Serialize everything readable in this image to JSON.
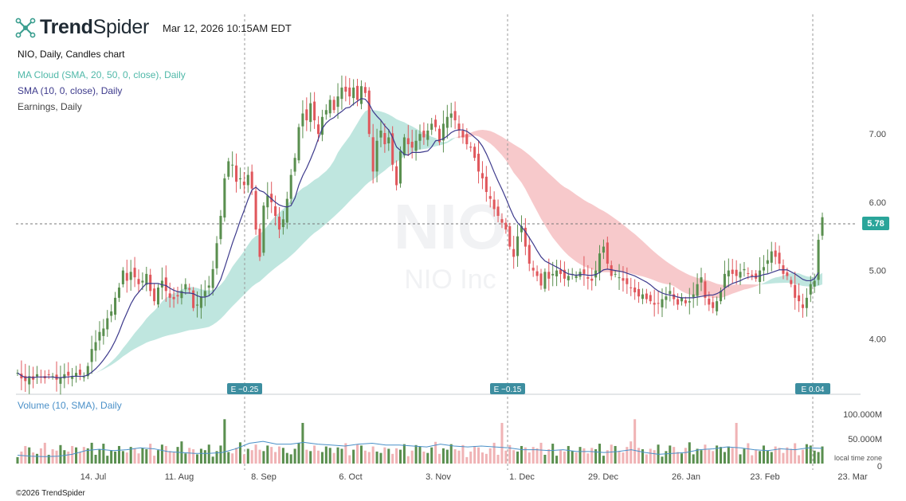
{
  "header": {
    "brand_bold": "Trend",
    "brand_light": "Spider",
    "timestamp": "Mar 12, 2026 10:15AM EDT"
  },
  "legend": {
    "chart_title": "NIO, Daily, Candles chart",
    "ma_cloud": "MA Cloud (SMA, 20, 50, 0, close), Daily",
    "sma": "SMA (10, 0, close), Daily",
    "earnings": "Earnings, Daily",
    "volume": "Volume (10, SMA), Daily"
  },
  "watermark": {
    "symbol": "NIO",
    "name": "NIO Inc"
  },
  "footer": "©2026 TrendSpider",
  "volume_axis_note": "local time zone",
  "colors": {
    "up": "#5a8f4f",
    "down": "#e0575c",
    "cloud_bull": "#bfe6df",
    "cloud_bear": "#f7c9cb",
    "sma": "#3d3a8c",
    "badge": "#3d8ea0",
    "price_tag": "#2aa59a",
    "vol_up": "#5a8f4f",
    "vol_down": "#f0b3b5"
  },
  "chart_data": {
    "type": "candlestick",
    "symbol": "NIO",
    "interval": "Daily",
    "ylim": [
      3.3,
      7.85
    ],
    "y_ticks": [
      {
        "value": 7.0,
        "label": "7.00"
      },
      {
        "value": 6.0,
        "label": "6.00"
      },
      {
        "value": 5.0,
        "label": "5.00"
      },
      {
        "value": 4.0,
        "label": "4.00"
      }
    ],
    "x_ticks": [
      "14. Jul",
      "11. Aug",
      "8. Sep",
      "6. Oct",
      "3. Nov",
      "1. Dec",
      "29. Dec",
      "26. Jan",
      "23. Feb",
      "23. Mar"
    ],
    "last_price": {
      "value": 5.78,
      "label": "5.78"
    },
    "earnings": [
      {
        "label": "E −0.25",
        "date": "2025-09-02"
      },
      {
        "label": "E −0.15",
        "date": "2025-11-25"
      },
      {
        "label": "E 0.04",
        "date": "2026-03-10"
      }
    ],
    "ohlc_close": [
      3.5,
      3.42,
      3.38,
      3.45,
      3.4,
      3.48,
      3.44,
      3.42,
      3.47,
      3.45,
      3.4,
      3.43,
      3.48,
      3.46,
      3.45,
      3.5,
      3.47,
      3.44,
      3.6,
      3.85,
      3.95,
      4.1,
      4.15,
      4.3,
      4.4,
      4.6,
      4.75,
      5.0,
      4.85,
      4.98,
      4.9,
      4.8,
      4.85,
      4.95,
      4.7,
      4.55,
      4.75,
      4.85,
      4.7,
      4.6,
      4.58,
      4.62,
      4.7,
      4.8,
      4.72,
      4.45,
      4.5,
      4.62,
      4.7,
      4.78,
      5.02,
      5.4,
      5.8,
      6.35,
      6.6,
      6.55,
      6.3,
      6.35,
      6.25,
      6.4,
      6.2,
      5.6,
      5.2,
      5.95,
      6.1,
      6.0,
      5.8,
      5.6,
      5.75,
      6.05,
      6.4,
      6.65,
      7.1,
      7.3,
      7.2,
      7.45,
      7.2,
      7.0,
      7.25,
      7.35,
      7.5,
      7.35,
      7.55,
      7.68,
      7.62,
      7.55,
      7.68,
      7.5,
      7.7,
      7.6,
      7.0,
      6.45,
      6.9,
      7.05,
      6.85,
      6.95,
      6.55,
      6.25,
      6.75,
      6.95,
      6.85,
      6.8,
      6.9,
      7.0,
      6.95,
      7.05,
      7.15,
      7.1,
      6.88,
      7.15,
      7.25,
      7.3,
      7.2,
      7.05,
      6.95,
      6.85,
      6.8,
      6.65,
      6.45,
      6.35,
      6.15,
      6.05,
      5.9,
      5.8,
      5.7,
      5.6,
      5.35,
      5.2,
      5.5,
      5.65,
      5.35,
      5.1,
      5.0,
      4.92,
      4.78,
      4.98,
      4.88,
      4.95,
      5.0,
      4.95,
      4.88,
      4.92,
      4.95,
      4.92,
      4.98,
      4.95,
      4.88,
      4.85,
      5.0,
      5.25,
      5.35,
      5.1,
      4.92,
      4.95,
      4.9,
      4.85,
      4.8,
      4.75,
      4.68,
      4.62,
      4.65,
      4.58,
      4.55,
      4.5,
      4.52,
      4.58,
      4.62,
      4.7,
      4.58,
      4.5,
      4.6,
      4.52,
      4.55,
      4.65,
      4.8,
      4.9,
      4.6,
      4.5,
      4.45,
      4.55,
      4.7,
      4.95,
      5.0,
      4.95,
      4.92,
      4.98,
      5.02,
      4.95,
      4.92,
      4.88,
      5.0,
      5.05,
      5.15,
      5.28,
      5.2,
      5.1,
      4.95,
      4.92,
      4.8,
      4.6,
      4.55,
      4.45,
      4.6,
      4.8,
      4.85,
      5.45,
      5.78
    ],
    "sma_10": [
      3.5,
      3.46,
      3.43,
      3.44,
      3.43,
      3.44,
      3.44,
      3.44,
      3.44,
      3.44,
      3.43,
      3.43,
      3.44,
      3.44,
      3.45,
      3.45,
      3.45,
      3.45,
      3.47,
      3.51,
      3.56,
      3.62,
      3.69,
      3.77,
      3.86,
      3.97,
      4.1,
      4.25,
      4.38,
      4.51,
      4.61,
      4.68,
      4.75,
      4.81,
      4.81,
      4.81,
      4.81,
      4.79,
      4.78,
      4.74,
      4.71,
      4.69,
      4.68,
      4.67,
      4.67,
      4.66,
      4.63,
      4.61,
      4.61,
      4.63,
      4.68,
      4.76,
      4.87,
      5.04,
      5.22,
      5.4,
      5.56,
      5.73,
      5.88,
      6.04,
      6.18,
      6.22,
      6.17,
      6.15,
      6.1,
      6.05,
      6.0,
      5.96,
      5.94,
      5.93,
      5.95,
      6.06,
      6.25,
      6.39,
      6.5,
      6.63,
      6.77,
      6.93,
      7.08,
      7.16,
      7.21,
      7.24,
      7.29,
      7.33,
      7.38,
      7.39,
      7.44,
      7.48,
      7.52,
      7.51,
      7.44,
      7.33,
      7.26,
      7.2,
      7.12,
      7.06,
      6.95,
      6.81,
      6.76,
      6.7,
      6.69,
      6.73,
      6.73,
      6.73,
      6.74,
      6.75,
      6.81,
      6.9,
      6.91,
      6.93,
      6.97,
      7.02,
      7.05,
      7.06,
      7.06,
      7.04,
      7.0,
      6.95,
      6.9,
      6.82,
      6.71,
      6.58,
      6.44,
      6.31,
      6.19,
      6.06,
      5.92,
      5.79,
      5.7,
      5.64,
      5.57,
      5.48,
      5.39,
      5.29,
      5.2,
      5.14,
      5.11,
      5.08,
      5.05,
      5.02,
      4.98,
      4.95,
      4.94,
      4.93,
      4.94,
      4.94,
      4.93,
      4.93,
      4.94,
      4.97,
      5.01,
      5.02,
      5.01,
      5.0,
      4.99,
      4.98,
      4.96,
      4.94,
      4.92,
      4.89,
      4.86,
      4.83,
      4.79,
      4.74,
      4.7,
      4.67,
      4.65,
      4.64,
      4.63,
      4.61,
      4.6,
      4.6,
      4.6,
      4.6,
      4.61,
      4.62,
      4.63,
      4.64,
      4.64,
      4.66,
      4.69,
      4.74,
      4.78,
      4.81,
      4.83,
      4.85,
      4.88,
      4.9,
      4.91,
      4.91,
      4.92,
      4.94,
      4.95,
      4.97,
      4.99,
      5.01,
      5.01,
      5.01,
      4.98,
      4.95,
      4.91,
      4.87,
      4.85,
      4.85,
      4.88,
      4.97
    ]
  },
  "volume_data": {
    "ylim": [
      0,
      130
    ],
    "y_ticks": [
      {
        "value": 100,
        "label": "100.000M"
      },
      {
        "value": 50,
        "label": "50.000M"
      },
      {
        "value": 0,
        "label": "0"
      }
    ],
    "sma_levels": [
      18,
      16,
      15,
      16,
      20,
      28,
      31,
      28,
      30,
      34,
      32,
      26,
      24,
      22,
      22,
      24,
      32,
      44,
      48,
      42,
      42,
      46,
      42,
      40,
      38,
      42,
      44,
      40,
      40,
      38,
      36,
      42,
      38,
      36,
      38,
      36,
      34,
      30,
      30,
      28,
      30,
      26,
      26,
      24,
      26,
      30,
      24,
      20,
      22,
      24,
      30,
      32,
      36,
      34,
      30,
      28,
      32,
      30,
      34,
      33
    ]
  }
}
